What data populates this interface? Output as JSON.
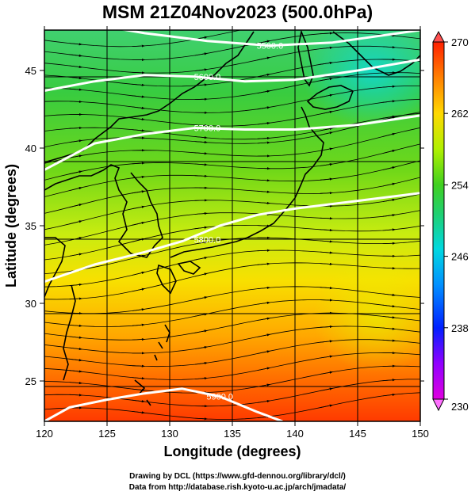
{
  "chart_data": {
    "type": "heatmap",
    "title": "MSM 21Z04Nov2023 (500.0hPa)",
    "xlabel": "Longitude (degrees)",
    "ylabel": "Latitude  (degrees)",
    "xlim": [
      120,
      150
    ],
    "ylim": [
      22.4,
      47.6
    ],
    "x_ticks": [
      120,
      125,
      130,
      135,
      140,
      145,
      150
    ],
    "y_ticks": [
      25,
      30,
      35,
      40,
      45
    ],
    "colorbar": {
      "min": 230,
      "max": 270,
      "ticks": [
        230,
        238,
        246,
        254,
        262,
        270
      ],
      "colors": [
        "#e000e0",
        "#8000ff",
        "#0030ff",
        "#00a0ff",
        "#00e0d0",
        "#20d060",
        "#40d020",
        "#c0f000",
        "#ffe000",
        "#ff8000",
        "#ff2000"
      ]
    },
    "contours": [
      {
        "label": "5500.0",
        "value": 5500,
        "points": [
          [
            123,
            48.1
          ],
          [
            128,
            47.4
          ],
          [
            133,
            46.9
          ],
          [
            138,
            46.6
          ],
          [
            143,
            46.8
          ],
          [
            150,
            47.6
          ]
        ]
      },
      {
        "label": "5600.0",
        "value": 5600,
        "points": [
          [
            120,
            43.7
          ],
          [
            124,
            44.3
          ],
          [
            128,
            44.7
          ],
          [
            132,
            44.6
          ],
          [
            136,
            44.3
          ],
          [
            140,
            44.4
          ],
          [
            145,
            45.0
          ],
          [
            150,
            45.7
          ]
        ]
      },
      {
        "label": "5700.0",
        "value": 5700,
        "points": [
          [
            120,
            38.6
          ],
          [
            124,
            40.3
          ],
          [
            128,
            40.9
          ],
          [
            132,
            41.3
          ],
          [
            136,
            41.2
          ],
          [
            140,
            41.2
          ],
          [
            145,
            41.5
          ],
          [
            150,
            42.1
          ]
        ]
      },
      {
        "label": "5800.0",
        "value": 5800,
        "points": [
          [
            120,
            31.4
          ],
          [
            124,
            32.5
          ],
          [
            128,
            33.3
          ],
          [
            131,
            34.0
          ],
          [
            134,
            35.0
          ],
          [
            137,
            35.7
          ],
          [
            140,
            36.1
          ],
          [
            145,
            36.6
          ],
          [
            150,
            37.1
          ]
        ]
      },
      {
        "label": "5900.0",
        "value": 5900,
        "points": [
          [
            120,
            22.4
          ],
          [
            122,
            23.3
          ],
          [
            125,
            23.8
          ],
          [
            128,
            24.2
          ],
          [
            131,
            24.5
          ],
          [
            134,
            24.0
          ],
          [
            137,
            23.0
          ],
          [
            139,
            22.4
          ]
        ]
      }
    ],
    "contour_label_positions": [
      [
        138,
        46.6
      ],
      [
        133,
        44.6
      ],
      [
        133,
        41.3
      ],
      [
        133,
        34.1
      ],
      [
        134,
        24.0
      ]
    ],
    "wind_direction": "westerly",
    "grid": true
  },
  "credits": {
    "line1": "Drawing by DCL (https://www.gfd-dennou.org/library/dcl/)",
    "line2": "Data from http://database.rish.kyoto-u.ac.jp/arch/jmadata/"
  }
}
